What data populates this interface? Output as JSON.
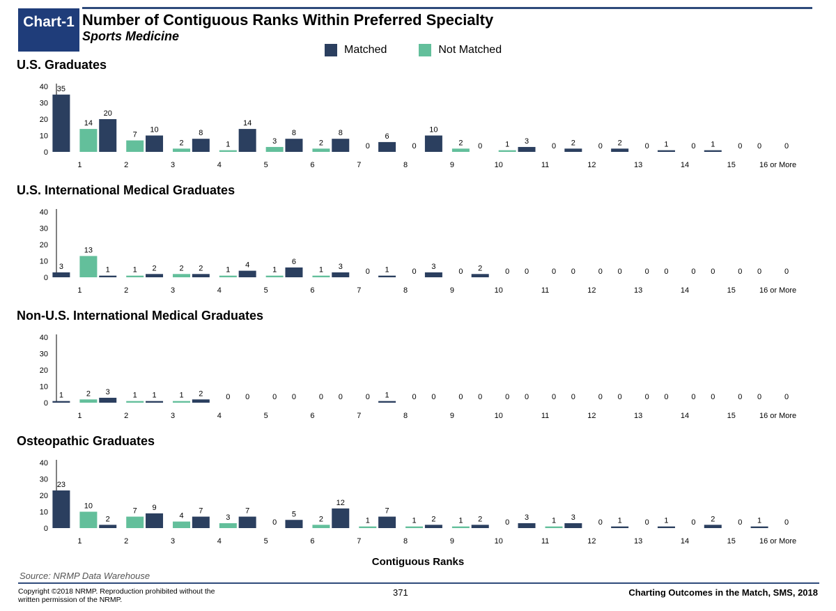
{
  "header": {
    "badge": "Chart-1",
    "title": "Number of Contiguous Ranks Within Preferred Specialty",
    "subtitle": "Sports Medicine"
  },
  "legend": [
    {
      "label": "Matched",
      "color": "#2b3f5f"
    },
    {
      "label": "Not Matched",
      "color": "#63bf9b"
    }
  ],
  "colors": {
    "matched": "#2b3f5f",
    "not_matched": "#63bf9b",
    "accent": "#1f3d7a"
  },
  "chart_data": [
    {
      "type": "bar",
      "title": "U.S. Graduates",
      "categories": [
        "1",
        "2",
        "3",
        "4",
        "5",
        "6",
        "7",
        "8",
        "9",
        "10",
        "11",
        "12",
        "13",
        "14",
        "15",
        "16 or More"
      ],
      "series": [
        {
          "name": "Matched",
          "values": [
            35,
            20,
            10,
            8,
            14,
            8,
            8,
            6,
            10,
            0,
            3,
            2,
            2,
            1,
            1,
            0
          ]
        },
        {
          "name": "Not Matched",
          "values": [
            14,
            7,
            2,
            1,
            3,
            2,
            0,
            0,
            2,
            1,
            0,
            0,
            0,
            0,
            0,
            0
          ]
        }
      ],
      "yticks": [
        0,
        10,
        20,
        30,
        40
      ],
      "ylim": [
        0,
        40
      ]
    },
    {
      "type": "bar",
      "title": "U.S. International Medical Graduates",
      "categories": [
        "1",
        "2",
        "3",
        "4",
        "5",
        "6",
        "7",
        "8",
        "9",
        "10",
        "11",
        "12",
        "13",
        "14",
        "15",
        "16 or More"
      ],
      "series": [
        {
          "name": "Matched",
          "values": [
            3,
            1,
            2,
            2,
            4,
            6,
            3,
            1,
            3,
            2,
            0,
            0,
            0,
            0,
            0,
            0
          ]
        },
        {
          "name": "Not Matched",
          "values": [
            13,
            1,
            2,
            1,
            1,
            1,
            0,
            0,
            0,
            0,
            0,
            0,
            0,
            0,
            0,
            0
          ]
        }
      ],
      "yticks": [
        0,
        10,
        20,
        30,
        40
      ],
      "ylim": [
        0,
        40
      ]
    },
    {
      "type": "bar",
      "title": "Non-U.S. International Medical Graduates",
      "categories": [
        "1",
        "2",
        "3",
        "4",
        "5",
        "6",
        "7",
        "8",
        "9",
        "10",
        "11",
        "12",
        "13",
        "14",
        "15",
        "16 or More"
      ],
      "series": [
        {
          "name": "Matched",
          "values": [
            1,
            3,
            1,
            2,
            0,
            0,
            0,
            1,
            0,
            0,
            0,
            0,
            0,
            0,
            0,
            0
          ]
        },
        {
          "name": "Not Matched",
          "values": [
            2,
            1,
            1,
            0,
            0,
            0,
            0,
            0,
            0,
            0,
            0,
            0,
            0,
            0,
            0,
            0
          ]
        }
      ],
      "yticks": [
        0,
        10,
        20,
        30,
        40
      ],
      "ylim": [
        0,
        40
      ]
    },
    {
      "type": "bar",
      "title": "Osteopathic Graduates",
      "categories": [
        "1",
        "2",
        "3",
        "4",
        "5",
        "6",
        "7",
        "8",
        "9",
        "10",
        "11",
        "12",
        "13",
        "14",
        "15",
        "16 or More"
      ],
      "series": [
        {
          "name": "Matched",
          "values": [
            23,
            2,
            9,
            7,
            7,
            5,
            12,
            7,
            2,
            2,
            3,
            3,
            1,
            1,
            2,
            1
          ]
        },
        {
          "name": "Not Matched",
          "values": [
            10,
            7,
            4,
            3,
            0,
            2,
            1,
            1,
            1,
            0,
            1,
            0,
            0,
            0,
            0,
            0
          ]
        }
      ],
      "yticks": [
        0,
        10,
        20,
        30,
        40
      ],
      "ylim": [
        0,
        40
      ]
    }
  ],
  "xaxis_title": "Contiguous Ranks",
  "footer": {
    "source": "Source: NRMP Data Warehouse",
    "copyright": "Copyright ©2018 NRMP. Reproduction prohibited without the written permission of the NRMP.",
    "page_number": "371",
    "report": "Charting Outcomes in the Match, SMS, 2018"
  }
}
